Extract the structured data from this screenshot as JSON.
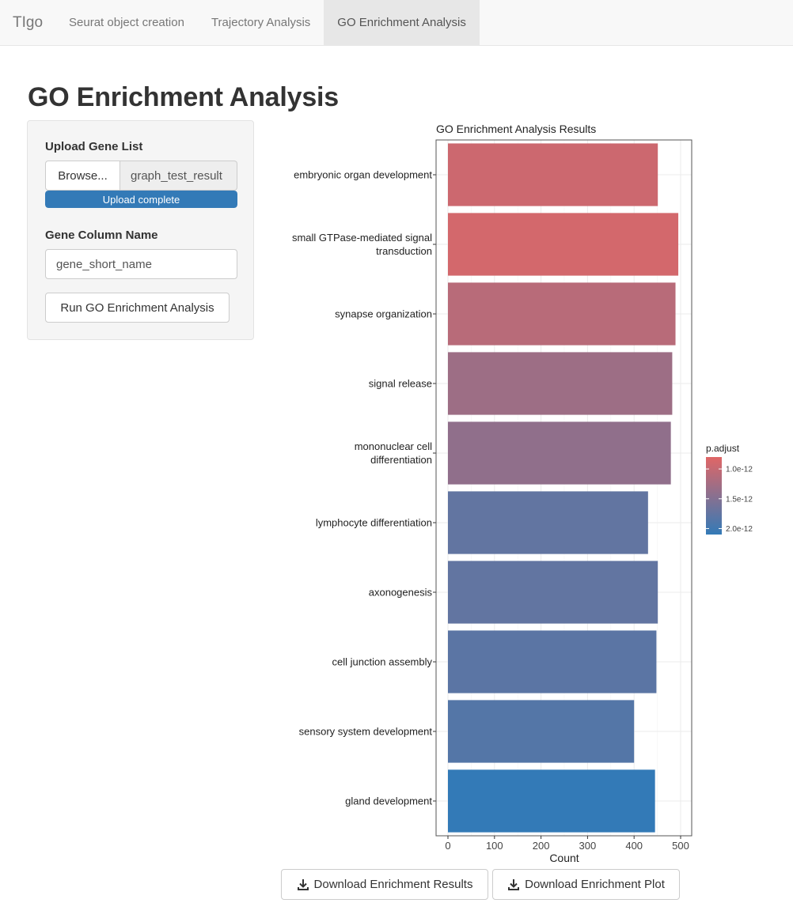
{
  "navbar": {
    "brand": "TIgo",
    "tabs": [
      {
        "label": "Seurat object creation",
        "active": false
      },
      {
        "label": "Trajectory Analysis",
        "active": false
      },
      {
        "label": "GO Enrichment Analysis",
        "active": true
      }
    ]
  },
  "page": {
    "title": "GO Enrichment Analysis"
  },
  "sidebar": {
    "upload_label": "Upload Gene List",
    "browse_label": "Browse...",
    "file_name": "graph_test_result",
    "upload_status": "Upload complete",
    "upload_progress": 1.0,
    "gene_column_label": "Gene Column Name",
    "gene_column_value": "gene_short_name",
    "run_label": "Run GO Enrichment Analysis"
  },
  "buttons": {
    "download_results": "Download Enrichment Results",
    "download_plot": "Download Enrichment Plot",
    "icon": "download-icon"
  },
  "colors": {
    "accent": "#337ab7",
    "bar_low_padj": "#e06666",
    "bar_high_padj": "#337ab7"
  },
  "chart_data": {
    "type": "bar",
    "orientation": "horizontal",
    "title": "GO Enrichment Analysis Results",
    "xlabel": "Count",
    "ylabel": "",
    "xlim": [
      0,
      510
    ],
    "xticks": [
      "0",
      "100",
      "200",
      "300",
      "400",
      "500"
    ],
    "grid": true,
    "categories": [
      [
        "embryonic organ development"
      ],
      [
        "small GTPase-mediated signal",
        "transduction"
      ],
      [
        "synapse organization"
      ],
      [
        "signal release"
      ],
      [
        "mononuclear cell",
        "differentiation"
      ],
      [
        "lymphocyte differentiation"
      ],
      [
        "axonogenesis"
      ],
      [
        "cell junction assembly"
      ],
      [
        "sensory system development"
      ],
      [
        "gland development"
      ]
    ],
    "values": [
      451,
      495,
      489,
      482,
      479,
      430,
      451,
      448,
      400,
      445
    ],
    "p_adjust": [
      9.5e-13,
      9e-13,
      1.1e-12,
      1.3e-12,
      1.4e-12,
      1.75e-12,
      1.75e-12,
      1.8e-12,
      1.85e-12,
      2.1e-12
    ],
    "legend": {
      "title": "p.adjust",
      "position": "right",
      "labels": [
        "1.0e-12",
        "1.5e-12",
        "2.0e-12"
      ],
      "range": [
        8e-13,
        2.1e-12
      ]
    }
  }
}
